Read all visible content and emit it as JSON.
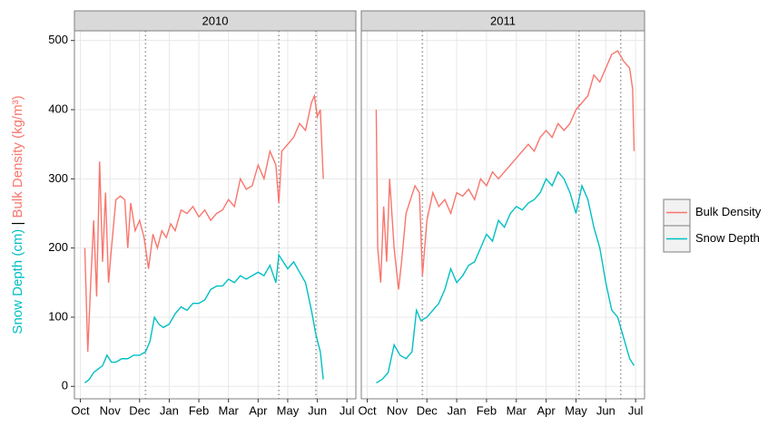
{
  "chart_data": {
    "type": "line",
    "ylabel": {
      "parts": [
        {
          "text": "Snow Depth (cm)",
          "color": "#00BFC4"
        },
        {
          "text": " | ",
          "color": "#000000"
        },
        {
          "text": "Bulk Density (kg/m³)",
          "color": "#F8766D"
        }
      ]
    },
    "ylim": [
      -18,
      514
    ],
    "yticks": [
      0,
      100,
      200,
      300,
      400,
      500
    ],
    "xlim": [
      -0.2,
      9.3
    ],
    "xticks": [
      {
        "value": 0,
        "label": "Oct"
      },
      {
        "value": 1,
        "label": "Nov"
      },
      {
        "value": 2,
        "label": "Dec"
      },
      {
        "value": 3,
        "label": "Jan"
      },
      {
        "value": 4,
        "label": "Feb"
      },
      {
        "value": 5,
        "label": "Mar"
      },
      {
        "value": 6,
        "label": "Apr"
      },
      {
        "value": 7,
        "label": "May"
      },
      {
        "value": 8,
        "label": "Jun"
      },
      {
        "value": 9,
        "label": "Jul"
      }
    ],
    "grid": true,
    "legend": {
      "position": "right",
      "items": [
        {
          "name": "Bulk Density",
          "color": "#F8766D"
        },
        {
          "name": "Snow Depth",
          "color": "#00BFC4"
        }
      ]
    },
    "panels": [
      {
        "title": "2010",
        "vlines": [
          2.2,
          6.7,
          7.95
        ],
        "series": [
          {
            "x": [
              0.15,
              0.25,
              0.35,
              0.45,
              0.55,
              0.65,
              0.75,
              0.85,
              0.95,
              1.05,
              1.2,
              1.35,
              1.5,
              1.6,
              1.7,
              1.85,
              2.0,
              2.15,
              2.3,
              2.45,
              2.6,
              2.75,
              2.9,
              3.05,
              3.2,
              3.4,
              3.6,
              3.8,
              4.0,
              4.2,
              4.4,
              4.6,
              4.8,
              5.0,
              5.2,
              5.4,
              5.6,
              5.8,
              6.0,
              6.2,
              6.4,
              6.6,
              6.7,
              6.8,
              7.0,
              7.2,
              7.4,
              7.6,
              7.8,
              7.9,
              8.0,
              8.1,
              8.2
            ],
            "values": [
              200,
              50,
              150,
              240,
              130,
              325,
              180,
              280,
              150,
              200,
              270,
              275,
              270,
              200,
              265,
              225,
              240,
              215,
              170,
              220,
              200,
              225,
              215,
              235,
              225,
              255,
              250,
              260,
              245,
              255,
              240,
              250,
              255,
              270,
              260,
              300,
              285,
              290,
              320,
              300,
              340,
              320,
              265,
              340,
              350,
              360,
              380,
              370,
              410,
              420,
              390,
              400,
              300
            ]
          },
          {
            "x": [
              0.15,
              0.3,
              0.45,
              0.6,
              0.75,
              0.9,
              1.05,
              1.2,
              1.4,
              1.6,
              1.8,
              2.0,
              2.2,
              2.35,
              2.5,
              2.65,
              2.8,
              3.0,
              3.2,
              3.4,
              3.6,
              3.8,
              4.0,
              4.2,
              4.4,
              4.6,
              4.8,
              5.0,
              5.2,
              5.4,
              5.6,
              5.8,
              6.0,
              6.2,
              6.4,
              6.6,
              6.7,
              6.85,
              7.0,
              7.2,
              7.4,
              7.6,
              7.8,
              7.95,
              8.1,
              8.2
            ],
            "values": [
              5,
              10,
              20,
              25,
              30,
              45,
              35,
              35,
              40,
              40,
              45,
              45,
              50,
              65,
              100,
              90,
              85,
              90,
              105,
              115,
              110,
              120,
              120,
              125,
              140,
              145,
              145,
              155,
              150,
              160,
              155,
              160,
              165,
              160,
              175,
              150,
              190,
              180,
              170,
              180,
              165,
              150,
              110,
              75,
              50,
              10
            ]
          }
        ]
      },
      {
        "title": "2011",
        "vlines": [
          1.85,
          7.1,
          8.5
        ],
        "series": [
          {
            "x": [
              0.3,
              0.35,
              0.45,
              0.55,
              0.65,
              0.75,
              0.9,
              1.05,
              1.15,
              1.3,
              1.45,
              1.6,
              1.75,
              1.85,
              2.0,
              2.2,
              2.4,
              2.6,
              2.8,
              3.0,
              3.2,
              3.4,
              3.6,
              3.8,
              4.0,
              4.2,
              4.4,
              4.6,
              4.8,
              5.0,
              5.2,
              5.4,
              5.6,
              5.8,
              6.0,
              6.2,
              6.4,
              6.6,
              6.8,
              7.0,
              7.2,
              7.4,
              7.6,
              7.8,
              8.0,
              8.2,
              8.4,
              8.6,
              8.8,
              8.9,
              8.95
            ],
            "values": [
              400,
              200,
              150,
              260,
              180,
              300,
              200,
              140,
              180,
              250,
              270,
              290,
              280,
              160,
              240,
              280,
              260,
              270,
              250,
              280,
              275,
              285,
              270,
              300,
              290,
              310,
              300,
              310,
              320,
              330,
              340,
              350,
              340,
              360,
              370,
              360,
              380,
              370,
              380,
              400,
              410,
              420,
              450,
              440,
              460,
              480,
              485,
              470,
              460,
              430,
              340
            ]
          },
          {
            "x": [
              0.3,
              0.5,
              0.7,
              0.9,
              1.1,
              1.3,
              1.5,
              1.65,
              1.8,
              2.0,
              2.2,
              2.4,
              2.6,
              2.8,
              3.0,
              3.2,
              3.4,
              3.6,
              3.8,
              4.0,
              4.2,
              4.4,
              4.6,
              4.8,
              5.0,
              5.2,
              5.4,
              5.6,
              5.8,
              6.0,
              6.2,
              6.4,
              6.6,
              6.8,
              7.0,
              7.2,
              7.4,
              7.6,
              7.8,
              8.0,
              8.2,
              8.4,
              8.6,
              8.8,
              8.95
            ],
            "values": [
              5,
              10,
              20,
              60,
              45,
              40,
              50,
              110,
              95,
              100,
              110,
              120,
              140,
              170,
              150,
              160,
              175,
              180,
              200,
              220,
              210,
              240,
              230,
              250,
              260,
              255,
              265,
              270,
              280,
              300,
              290,
              310,
              300,
              280,
              250,
              290,
              270,
              230,
              200,
              150,
              110,
              100,
              70,
              40,
              30
            ]
          }
        ]
      }
    ]
  }
}
